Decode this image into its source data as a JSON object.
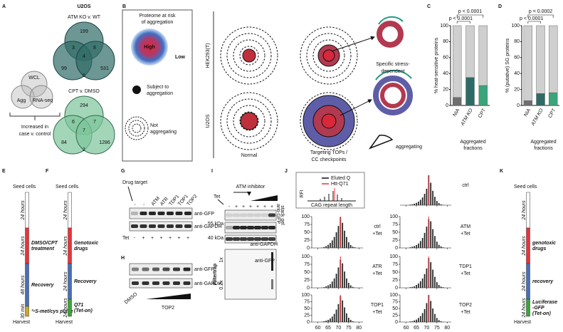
{
  "panels": {
    "A": {
      "letter": "A",
      "small_venn": [
        "WCL",
        "Agg",
        "RNA-seq"
      ],
      "caption": [
        "Increased in",
        "case v. control"
      ],
      "cell_line": "U2OS",
      "venns": [
        {
          "title": "ATM KO v. WT",
          "counts": [
            199,
            3,
            8,
            4,
            99,
            531,
            0
          ]
        },
        {
          "title": "CPT v. DMSO",
          "counts": [
            294,
            6,
            7,
            7,
            84,
            1286,
            2
          ]
        }
      ]
    },
    "B": {
      "letter": "B",
      "legend_title": [
        "Proteome at risk",
        "of aggregation"
      ],
      "high": "High",
      "low": "Low",
      "subject": [
        "Subject to",
        "aggregation"
      ],
      "not_aggregating": [
        "Not",
        "aggregating"
      ],
      "rows": [
        "HEK293(T)",
        "U2OS"
      ],
      "columns": [
        "Normal",
        "Targeting TOPs /",
        "CC checkpoints"
      ],
      "specific": [
        "Specific stress-",
        "dependent"
      ],
      "aggregating": "aggregating"
    },
    "C": {
      "letter": "C"
    },
    "D": {
      "letter": "D"
    },
    "E": {
      "letter": "E",
      "seed": "Seed cells",
      "harvest": "Harvest",
      "steps": [
        {
          "duration": "24 hours"
        },
        {
          "duration": "24 hours",
          "label": [
            "DMSO/CPT",
            "treatment"
          ],
          "color": "#e8343a"
        },
        {
          "duration": "48 hours",
          "label": [
            "Recovery"
          ],
          "color": "#4a6fb5"
        },
        {
          "duration": "30 min",
          "label": [
            "³⁵S-met/cys pulse"
          ],
          "color": "#c9a92a"
        }
      ]
    },
    "F": {
      "letter": "F",
      "seed": "Seed cells",
      "harvest": "Harvest",
      "steps": [
        {
          "duration": "24 hours"
        },
        {
          "duration": "24 hours",
          "label": [
            "Genotoxic",
            "drugs"
          ],
          "color": "#e8343a"
        },
        {
          "duration": "24 hours",
          "label": [
            "Recovery"
          ],
          "color": "#4a6fb5"
        },
        {
          "duration": "24 hours",
          "label": [
            "Q71",
            "(Tet-on)"
          ],
          "color": "#3aa53a"
        }
      ]
    },
    "G": {
      "letter": "G",
      "drug_target": "Drug target",
      "lanes": [
        "-",
        "-",
        "ATM",
        "ATR",
        "TDP1",
        "TOP1",
        "TOP2"
      ],
      "tet_label": "Tet",
      "tet": [
        "-",
        "+",
        "+",
        "+",
        "+",
        "+",
        "+"
      ],
      "blots": [
        "anti-GFP",
        "anti-GAPDH"
      ]
    },
    "H": {
      "letter": "H",
      "blots": [
        "anti-GFP",
        "anti-GAPDH"
      ],
      "dmso": "DMSO",
      "top2": "TOP2"
    },
    "I": {
      "letter": "I",
      "inhibitor": "ATM inhibitor",
      "tet_label": "Tet",
      "tet": [
        "-",
        "+",
        "+",
        "+",
        "+",
        "+",
        "+"
      ],
      "stack": "stack gel",
      "stack_ab": "anti-GFP",
      "markers": [
        "55 kDa",
        "40 kDa"
      ],
      "gapdh": "anti-GAPDH",
      "filtertrap": "Filtertrap",
      "dilutions": [
        "1x",
        "0.2x"
      ],
      "ft_ab": "anti-GFP"
    },
    "J": {
      "letter": "J",
      "legend": [
        {
          "name": "Eluted Q",
          "color": "#111111"
        },
        {
          "name": "Htt-Q71",
          "color": "#e8343a"
        }
      ],
      "ylabel": "RFI",
      "xlabel": "CAG repeat length"
    },
    "K": {
      "letter": "K",
      "seed": "Seed cells",
      "harvest": "Harvest",
      "steps": [
        {
          "duration": "24 hours"
        },
        {
          "duration": "24 hours",
          "label": [
            "genotoxic",
            "drugs"
          ],
          "color": "#e8343a"
        },
        {
          "duration": "24 hours",
          "label": [
            "recovery"
          ],
          "color": "#4a6fb5"
        },
        {
          "duration": "24 hours",
          "label": [
            "Luciferase",
            "-GFP",
            "(Tet-on)"
          ],
          "color": "#3aa53a"
        }
      ]
    }
  },
  "chart_data": [
    {
      "type": "stacked_bar",
      "ylabel": "% heat-sensitive proteins",
      "categories": [
        "NIA",
        "ATM KO",
        "CPT"
      ],
      "series": [
        {
          "colors": [
            "#6e6e6e",
            "#2f6b66",
            "#3aa57a"
          ],
          "values": [
            10,
            35,
            25
          ]
        },
        {
          "color": "#cfcfcf",
          "values": [
            90,
            65,
            75
          ]
        }
      ],
      "ylim": [
        0,
        100
      ],
      "yticks": [
        0,
        20,
        40,
        60,
        80,
        100
      ],
      "comparisons": [
        "p < 0.0001",
        "p < 0.0001"
      ],
      "xlabel": [
        "Aggregated",
        "fractions"
      ]
    },
    {
      "type": "stacked_bar",
      "ylabel": "% (putative) SG proteins",
      "categories": [
        "NIA",
        "ATM KO",
        "CPT"
      ],
      "series": [
        {
          "colors": [
            "#6e6e6e",
            "#2f6b66",
            "#3aa57a"
          ],
          "values": [
            6,
            15,
            16
          ]
        },
        {
          "color": "#cfcfcf",
          "values": [
            94,
            85,
            84
          ]
        }
      ],
      "ylim": [
        0,
        100
      ],
      "yticks": [
        0,
        20,
        40,
        60,
        80,
        100
      ],
      "comparisons": [
        "p = 0.0002",
        "p < 0.0001"
      ],
      "xlabel": [
        "Aggregated",
        "fractions"
      ]
    },
    {
      "type": "histogram",
      "title": [
        "ctrl"
      ],
      "color": "#222222",
      "x": [
        62,
        63,
        64,
        65,
        66,
        67,
        68,
        69,
        70,
        71,
        72,
        73,
        74,
        75,
        76,
        77,
        78
      ],
      "values": [
        2,
        3,
        5,
        8,
        12,
        18,
        26,
        38,
        55,
        100,
        75,
        48,
        28,
        14,
        7,
        3,
        1
      ],
      "xlim": [
        57,
        82
      ],
      "xticks": [
        60,
        65,
        70,
        75,
        80
      ],
      "ylim": [
        0,
        100
      ],
      "reference": 71
    },
    {
      "type": "histogram",
      "title": [
        "ctrl",
        "+Tet"
      ],
      "color": "#222222",
      "x": [
        62,
        63,
        64,
        65,
        66,
        67,
        68,
        69,
        70,
        71,
        72,
        73,
        74,
        75,
        76,
        77,
        78
      ],
      "values": [
        1,
        3,
        6,
        10,
        16,
        24,
        35,
        50,
        70,
        98,
        80,
        55,
        35,
        18,
        9,
        4,
        2
      ],
      "xlim": [
        57,
        82
      ],
      "xticks": [
        60,
        65,
        70,
        75,
        80
      ],
      "ylim": [
        0,
        100
      ],
      "yticks": [
        0,
        25,
        50,
        75,
        100
      ],
      "reference": 71
    },
    {
      "type": "histogram",
      "title": [
        "ATM",
        "+Tet"
      ],
      "color": "#222222",
      "x": [
        62,
        63,
        64,
        65,
        66,
        67,
        68,
        69,
        70,
        71,
        72,
        73,
        74,
        75,
        76,
        77,
        78
      ],
      "values": [
        2,
        4,
        6,
        9,
        14,
        22,
        32,
        48,
        68,
        92,
        85,
        60,
        38,
        20,
        10,
        5,
        2
      ],
      "xlim": [
        57,
        82
      ],
      "xticks": [
        60,
        65,
        70,
        75,
        80
      ],
      "ylim": [
        0,
        100
      ],
      "yticks": [
        0,
        25,
        50,
        75,
        100
      ],
      "reference": 71
    },
    {
      "type": "histogram",
      "title": [
        "ATR",
        "+Tet"
      ],
      "color": "#222222",
      "x": [
        62,
        63,
        64,
        65,
        66,
        67,
        68,
        69,
        70,
        71,
        72,
        73,
        74,
        75,
        76,
        77,
        78
      ],
      "values": [
        1,
        2,
        5,
        8,
        12,
        20,
        30,
        45,
        65,
        90,
        78,
        52,
        30,
        16,
        8,
        3,
        1
      ],
      "xlim": [
        57,
        82
      ],
      "xticks": [
        60,
        65,
        70,
        75,
        80
      ],
      "ylim": [
        0,
        100
      ],
      "yticks": [
        0,
        25,
        50,
        75,
        100
      ],
      "reference": 71
    },
    {
      "type": "histogram",
      "title": [
        "TDP1",
        "+Tet"
      ],
      "color": "#222222",
      "x": [
        62,
        63,
        64,
        65,
        66,
        67,
        68,
        69,
        70,
        71,
        72,
        73,
        74,
        75,
        76,
        77,
        78
      ],
      "values": [
        2,
        3,
        5,
        9,
        14,
        21,
        30,
        44,
        62,
        95,
        82,
        58,
        35,
        18,
        9,
        4,
        2
      ],
      "xlim": [
        57,
        82
      ],
      "xticks": [
        60,
        65,
        70,
        75,
        80
      ],
      "ylim": [
        0,
        100
      ],
      "yticks": [
        0,
        25,
        50,
        75,
        100
      ],
      "reference": 71
    },
    {
      "type": "histogram",
      "title": [
        "TOP1",
        "+Tet"
      ],
      "color": "#222222",
      "x": [
        62,
        63,
        64,
        65,
        66,
        67,
        68,
        69,
        70,
        71,
        72,
        73,
        74,
        75,
        76,
        77,
        78
      ],
      "values": [
        1,
        3,
        5,
        8,
        13,
        20,
        30,
        46,
        66,
        96,
        80,
        54,
        32,
        16,
        8,
        3,
        1
      ],
      "xlim": [
        57,
        82
      ],
      "xticks": [
        60,
        65,
        70,
        75,
        80
      ],
      "ylim": [
        0,
        100
      ],
      "yticks": [
        0,
        25,
        50,
        75,
        100
      ],
      "reference": 71
    },
    {
      "type": "histogram",
      "title": [
        "TOP2",
        "+Tet"
      ],
      "color": "#222222",
      "x": [
        62,
        63,
        64,
        65,
        66,
        67,
        68,
        69,
        70,
        71,
        72,
        73,
        74,
        75,
        76,
        77,
        78
      ],
      "values": [
        2,
        3,
        6,
        9,
        15,
        22,
        33,
        48,
        70,
        100,
        78,
        50,
        30,
        15,
        7,
        3,
        1
      ],
      "xlim": [
        57,
        82
      ],
      "xticks": [
        60,
        65,
        70,
        75,
        80
      ],
      "ylim": [
        0,
        100
      ],
      "yticks": [
        0,
        25,
        50,
        75,
        100
      ],
      "reference": 71
    }
  ]
}
